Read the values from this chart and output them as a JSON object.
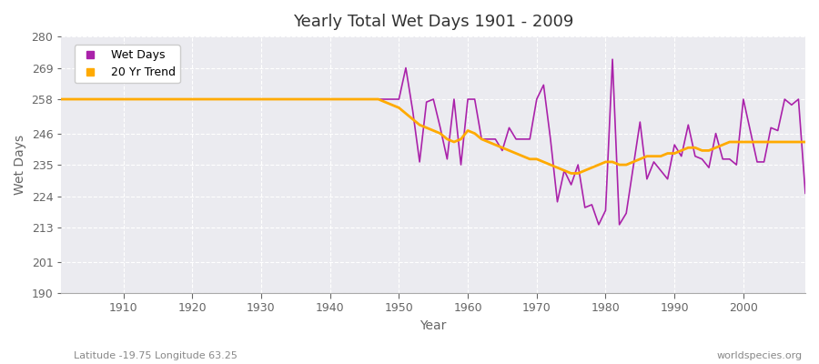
{
  "title": "Yearly Total Wet Days 1901 - 2009",
  "xlabel": "Year",
  "ylabel": "Wet Days",
  "subtitle_left": "Latitude -19.75 Longitude 63.25",
  "subtitle_right": "worldspecies.org",
  "ylim": [
    190,
    280
  ],
  "yticks": [
    190,
    201,
    213,
    224,
    235,
    246,
    258,
    269,
    280
  ],
  "xlim": [
    1901,
    2009
  ],
  "plot_bg_color": "#ebebf0",
  "fig_bg_color": "#ffffff",
  "wet_days_color": "#aa22aa",
  "trend_color": "#ffaa00",
  "wet_days_label": "Wet Days",
  "trend_label": "20 Yr Trend",
  "grid_color": "#ffffff",
  "tick_color": "#666666",
  "years": [
    1901,
    1902,
    1903,
    1904,
    1905,
    1906,
    1907,
    1908,
    1909,
    1910,
    1911,
    1912,
    1913,
    1914,
    1915,
    1916,
    1917,
    1918,
    1919,
    1920,
    1921,
    1922,
    1923,
    1924,
    1925,
    1926,
    1927,
    1928,
    1929,
    1930,
    1931,
    1932,
    1933,
    1934,
    1935,
    1936,
    1937,
    1938,
    1939,
    1940,
    1941,
    1942,
    1943,
    1944,
    1945,
    1946,
    1947,
    1948,
    1949,
    1950,
    1951,
    1952,
    1953,
    1954,
    1955,
    1956,
    1957,
    1958,
    1959,
    1960,
    1961,
    1962,
    1963,
    1964,
    1965,
    1966,
    1967,
    1968,
    1969,
    1970,
    1971,
    1972,
    1973,
    1974,
    1975,
    1976,
    1977,
    1978,
    1979,
    1980,
    1981,
    1982,
    1983,
    1984,
    1985,
    1986,
    1987,
    1988,
    1989,
    1990,
    1991,
    1992,
    1993,
    1994,
    1995,
    1996,
    1997,
    1998,
    1999,
    2000,
    2001,
    2002,
    2003,
    2004,
    2005,
    2006,
    2007,
    2008,
    2009
  ],
  "wet_days": [
    258,
    258,
    258,
    258,
    258,
    258,
    258,
    258,
    258,
    258,
    258,
    258,
    258,
    258,
    258,
    258,
    258,
    258,
    258,
    258,
    258,
    258,
    258,
    258,
    258,
    258,
    258,
    258,
    258,
    258,
    258,
    258,
    258,
    258,
    258,
    258,
    258,
    258,
    258,
    258,
    258,
    258,
    258,
    258,
    258,
    258,
    258,
    258,
    258,
    258,
    269,
    254,
    236,
    257,
    258,
    248,
    237,
    258,
    235,
    258,
    258,
    244,
    244,
    244,
    240,
    248,
    244,
    244,
    244,
    258,
    263,
    244,
    222,
    233,
    228,
    235,
    220,
    221,
    214,
    219,
    272,
    214,
    218,
    234,
    250,
    230,
    236,
    233,
    230,
    242,
    238,
    249,
    238,
    237,
    234,
    246,
    237,
    237,
    235,
    258,
    247,
    236,
    236,
    248,
    247,
    258,
    256,
    258,
    225
  ],
  "trend": [
    258,
    258,
    258,
    258,
    258,
    258,
    258,
    258,
    258,
    258,
    258,
    258,
    258,
    258,
    258,
    258,
    258,
    258,
    258,
    258,
    258,
    258,
    258,
    258,
    258,
    258,
    258,
    258,
    258,
    258,
    258,
    258,
    258,
    258,
    258,
    258,
    258,
    258,
    258,
    258,
    258,
    258,
    258,
    258,
    258,
    258,
    258,
    257,
    256,
    255,
    253,
    251,
    249,
    248,
    247,
    246,
    244,
    243,
    244,
    247,
    246,
    244,
    243,
    242,
    241,
    240,
    239,
    238,
    237,
    237,
    236,
    235,
    234,
    233,
    232,
    232,
    233,
    234,
    235,
    236,
    236,
    235,
    235,
    236,
    237,
    238,
    238,
    238,
    239,
    239,
    240,
    241,
    241,
    240,
    240,
    241,
    242,
    243,
    243,
    243,
    243,
    243,
    243,
    243,
    243,
    243,
    243,
    243,
    243
  ]
}
